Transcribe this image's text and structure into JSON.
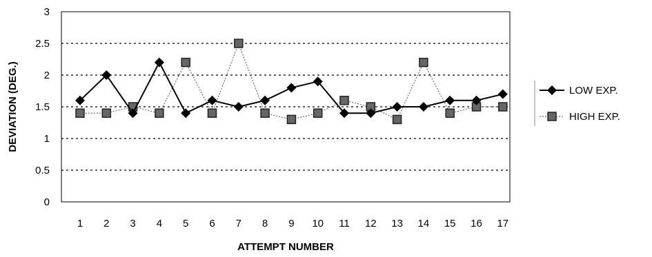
{
  "chart_data": {
    "type": "line",
    "title": "",
    "xlabel": "ATTEMPT NUMBER",
    "ylabel": "DEVIATION (DEG.)",
    "categories": [
      "1",
      "2",
      "3",
      "4",
      "5",
      "6",
      "7",
      "8",
      "9",
      "10",
      "11",
      "12",
      "13",
      "14",
      "15",
      "16",
      "17"
    ],
    "y_ticks": [
      "0",
      "0.5",
      "1",
      "1.5",
      "2",
      "2.5",
      "3"
    ],
    "ylim": [
      0,
      3
    ],
    "grid": "horizontal dotted",
    "legend_position": "right",
    "series": [
      {
        "name": "LOW EXP.",
        "marker": "diamond",
        "line_style": "solid",
        "color": "#000000",
        "values": [
          1.6,
          2.0,
          1.4,
          2.2,
          1.4,
          1.6,
          1.5,
          1.6,
          1.8,
          1.9,
          1.4,
          1.4,
          1.5,
          1.5,
          1.6,
          1.6,
          1.7
        ]
      },
      {
        "name": "HIGH EXP.",
        "marker": "square",
        "line_style": "dotted",
        "color": "#555555",
        "values": [
          1.4,
          1.4,
          1.5,
          1.4,
          2.2,
          1.4,
          2.5,
          1.4,
          1.3,
          1.4,
          1.6,
          1.5,
          1.3,
          2.2,
          1.4,
          1.5,
          1.5
        ]
      }
    ]
  }
}
